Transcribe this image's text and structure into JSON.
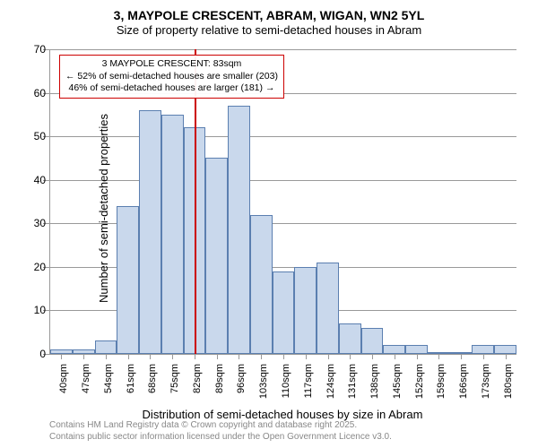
{
  "title": "3, MAYPOLE CRESCENT, ABRAM, WIGAN, WN2 5YL",
  "subtitle": "Size of property relative to semi-detached houses in Abram",
  "chart": {
    "type": "histogram",
    "ylabel": "Number of semi-detached properties",
    "xlabel": "Distribution of semi-detached houses by size in Abram",
    "ylim": [
      0,
      70
    ],
    "ytick_step": 10,
    "yticks": [
      0,
      10,
      20,
      30,
      40,
      50,
      60,
      70
    ],
    "x_categories": [
      "40sqm",
      "47sqm",
      "54sqm",
      "61sqm",
      "68sqm",
      "75sqm",
      "82sqm",
      "89sqm",
      "96sqm",
      "103sqm",
      "110sqm",
      "117sqm",
      "124sqm",
      "131sqm",
      "138sqm",
      "145sqm",
      "152sqm",
      "159sqm",
      "166sqm",
      "173sqm",
      "180sqm"
    ],
    "values": [
      1,
      1,
      3,
      34,
      56,
      55,
      52,
      45,
      57,
      32,
      19,
      20,
      21,
      7,
      6,
      2,
      2,
      0,
      0,
      2,
      2
    ],
    "bar_fill": "#c9d8ec",
    "bar_stroke": "#5b7fb0",
    "grid_color": "#999999",
    "background_color": "#ffffff",
    "reference_line": {
      "position_index": 6.5,
      "color": "#cc0000",
      "width": 2
    },
    "annotation": {
      "line1": "3 MAYPOLE CRESCENT: 83sqm",
      "line2": "← 52% of semi-detached houses are smaller (203)",
      "line3": "46% of semi-detached houses are larger (181) →",
      "border_color": "#cc0000",
      "background": "#ffffff"
    }
  },
  "footer": {
    "line1": "Contains HM Land Registry data © Crown copyright and database right 2025.",
    "line2": "Contains public sector information licensed under the Open Government Licence v3.0."
  }
}
